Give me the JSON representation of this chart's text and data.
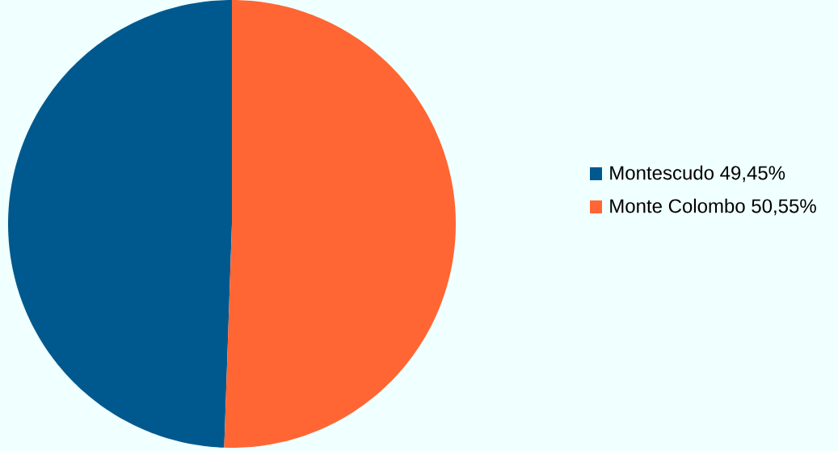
{
  "chart_data": {
    "type": "pie",
    "categories": [
      "Montescudo  49,45%",
      "Monte Colombo 50,55%"
    ],
    "values": [
      49.45,
      50.55
    ],
    "colors": [
      "#00598e",
      "#ff6633"
    ],
    "legend": "right"
  }
}
